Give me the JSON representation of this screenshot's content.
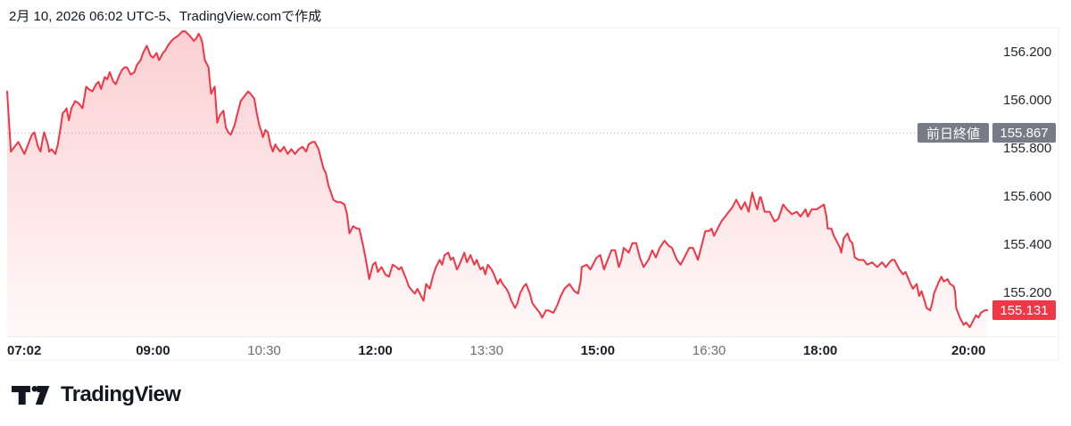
{
  "header": {
    "attribution": "2月 10, 2026 06:02 UTC-5、TradingView.comで作成"
  },
  "footer": {
    "logo_text": "TradingView"
  },
  "colors": {
    "accent_red": "#F23645",
    "prev_close_badge": "#787B86",
    "axis_text_major": "#1B1F29",
    "axis_text_minor": "#6A6D78",
    "price_text": "#23262F",
    "title_text": "#131722",
    "border": "#ECEEF1",
    "dotted_line": "#A7AAB3"
  },
  "chart_data": {
    "type": "area",
    "legend_position": "none",
    "grid": "off",
    "high": 156.29,
    "low": 155.06,
    "prev_close": {
      "label": "前日終値",
      "value": 155.867,
      "value_text": "155.867"
    },
    "last_price": {
      "value": 155.131,
      "value_text": "155.131"
    },
    "x_axis": {
      "start": "07:02",
      "end": "20:15",
      "ticks": [
        {
          "label": "07:02",
          "emphasis": true
        },
        {
          "label": "09:00",
          "emphasis": true
        },
        {
          "label": "10:30",
          "emphasis": false
        },
        {
          "label": "12:00",
          "emphasis": true
        },
        {
          "label": "13:30",
          "emphasis": false
        },
        {
          "label": "15:00",
          "emphasis": true
        },
        {
          "label": "16:30",
          "emphasis": false
        },
        {
          "label": "18:00",
          "emphasis": true
        },
        {
          "label": "20:00",
          "emphasis": true
        }
      ]
    },
    "y_axis": {
      "min": 155.02,
      "max": 156.305,
      "ticks": [
        {
          "value": 156.2,
          "label": "156.200"
        },
        {
          "value": 156.0,
          "label": "156.000"
        },
        {
          "value": 155.8,
          "label": "155.800"
        },
        {
          "value": 155.6,
          "label": "155.600"
        },
        {
          "value": 155.4,
          "label": "155.400"
        },
        {
          "value": 155.2,
          "label": "155.200"
        }
      ]
    },
    "points": [
      [
        "07:02",
        156.04
      ],
      [
        "07:05",
        155.79
      ],
      [
        "07:08",
        155.81
      ],
      [
        "07:11",
        155.83
      ],
      [
        "07:14",
        155.8
      ],
      [
        "07:16",
        155.78
      ],
      [
        "07:19",
        155.82
      ],
      [
        "07:22",
        155.86
      ],
      [
        "07:24",
        155.87
      ],
      [
        "07:27",
        155.81
      ],
      [
        "07:29",
        155.79
      ],
      [
        "07:31",
        155.85
      ],
      [
        "07:32",
        155.87
      ],
      [
        "07:35",
        155.82
      ],
      [
        "07:36",
        155.79
      ],
      [
        "07:38",
        155.8
      ],
      [
        "07:41",
        155.78
      ],
      [
        "07:43",
        155.82
      ],
      [
        "07:45",
        155.88
      ],
      [
        "07:47",
        155.95
      ],
      [
        "07:49",
        155.96
      ],
      [
        "07:50",
        155.97
      ],
      [
        "07:52",
        155.92
      ],
      [
        "07:54",
        155.97
      ],
      [
        "07:57",
        156.0
      ],
      [
        "08:00",
        155.99
      ],
      [
        "08:03",
        155.97
      ],
      [
        "08:06",
        156.06
      ],
      [
        "08:08",
        156.05
      ],
      [
        "08:11",
        156.04
      ],
      [
        "08:14",
        156.07
      ],
      [
        "08:16",
        156.08
      ],
      [
        "08:18",
        156.05
      ],
      [
        "08:21",
        156.1
      ],
      [
        "08:23",
        156.09
      ],
      [
        "08:25",
        156.12
      ],
      [
        "08:28",
        156.08
      ],
      [
        "08:30",
        156.07
      ],
      [
        "08:33",
        156.11
      ],
      [
        "08:35",
        156.13
      ],
      [
        "08:37",
        156.14
      ],
      [
        "08:39",
        156.14
      ],
      [
        "08:42",
        156.11
      ],
      [
        "08:45",
        156.12
      ],
      [
        "08:47",
        156.15
      ],
      [
        "08:50",
        156.17
      ],
      [
        "08:52",
        156.2
      ],
      [
        "08:54",
        156.22
      ],
      [
        "08:55",
        156.23
      ],
      [
        "08:58",
        156.19
      ],
      [
        "09:00",
        156.18
      ],
      [
        "09:03",
        156.2
      ],
      [
        "09:05",
        156.17
      ],
      [
        "09:08",
        156.2
      ],
      [
        "09:10",
        156.21
      ],
      [
        "09:12",
        156.23
      ],
      [
        "09:15",
        156.25
      ],
      [
        "09:17",
        156.26
      ],
      [
        "09:20",
        156.27
      ],
      [
        "09:22",
        156.28
      ],
      [
        "09:24",
        156.29
      ],
      [
        "09:26",
        156.29
      ],
      [
        "09:28",
        156.28
      ],
      [
        "09:30",
        156.27
      ],
      [
        "09:33",
        156.25
      ],
      [
        "09:35",
        156.26
      ],
      [
        "09:37",
        156.28
      ],
      [
        "09:39",
        156.26
      ],
      [
        "09:40",
        156.24
      ],
      [
        "09:42",
        156.17
      ],
      [
        "09:45",
        156.14
      ],
      [
        "09:46",
        156.08
      ],
      [
        "09:47",
        156.03
      ],
      [
        "09:50",
        156.06
      ],
      [
        "09:52",
        155.91
      ],
      [
        "09:54",
        155.94
      ],
      [
        "09:57",
        155.96
      ],
      [
        "09:59",
        155.89
      ],
      [
        "10:01",
        155.87
      ],
      [
        "10:03",
        155.86
      ],
      [
        "10:06",
        155.9
      ],
      [
        "10:08",
        155.94
      ],
      [
        "10:11",
        156.0
      ],
      [
        "10:14",
        156.02
      ],
      [
        "10:17",
        156.04
      ],
      [
        "10:19",
        156.03
      ],
      [
        "10:22",
        156.01
      ],
      [
        "10:24",
        155.95
      ],
      [
        "10:26",
        155.9
      ],
      [
        "10:28",
        155.87
      ],
      [
        "10:29",
        155.85
      ],
      [
        "10:31",
        155.88
      ],
      [
        "10:33",
        155.87
      ],
      [
        "10:35",
        155.82
      ],
      [
        "10:37",
        155.79
      ],
      [
        "10:39",
        155.82
      ],
      [
        "10:40",
        155.81
      ],
      [
        "10:43",
        155.79
      ],
      [
        "10:46",
        155.81
      ],
      [
        "10:49",
        155.78
      ],
      [
        "10:52",
        155.8
      ],
      [
        "10:55",
        155.78
      ],
      [
        "10:58",
        155.8
      ],
      [
        "11:01",
        155.81
      ],
      [
        "11:04",
        155.79
      ],
      [
        "11:06",
        155.82
      ],
      [
        "11:09",
        155.83
      ],
      [
        "11:11",
        155.83
      ],
      [
        "11:14",
        155.8
      ],
      [
        "11:16",
        155.76
      ],
      [
        "11:18",
        155.72
      ],
      [
        "11:20",
        155.7
      ],
      [
        "11:22",
        155.65
      ],
      [
        "11:24",
        155.62
      ],
      [
        "11:26",
        155.59
      ],
      [
        "11:29",
        155.58
      ],
      [
        "11:32",
        155.58
      ],
      [
        "11:35",
        155.57
      ],
      [
        "11:37",
        155.53
      ],
      [
        "11:39",
        155.45
      ],
      [
        "11:42",
        155.48
      ],
      [
        "11:45",
        155.47
      ],
      [
        "11:47",
        155.47
      ],
      [
        "11:50",
        155.4
      ],
      [
        "11:52",
        155.35
      ],
      [
        "11:55",
        155.26
      ],
      [
        "11:58",
        155.32
      ],
      [
        "12:00",
        155.33
      ],
      [
        "12:02",
        155.29
      ],
      [
        "12:05",
        155.31
      ],
      [
        "12:08",
        155.28
      ],
      [
        "12:11",
        155.27
      ],
      [
        "12:14",
        155.32
      ],
      [
        "12:17",
        155.31
      ],
      [
        "12:19",
        155.3
      ],
      [
        "12:21",
        155.31
      ],
      [
        "12:25",
        155.26
      ],
      [
        "12:27",
        155.23
      ],
      [
        "12:30",
        155.21
      ],
      [
        "12:32",
        155.2
      ],
      [
        "12:34",
        155.22
      ],
      [
        "12:37",
        155.19
      ],
      [
        "12:39",
        155.17
      ],
      [
        "12:41",
        155.24
      ],
      [
        "12:44",
        155.22
      ],
      [
        "12:47",
        155.28
      ],
      [
        "12:49",
        155.31
      ],
      [
        "12:52",
        155.34
      ],
      [
        "12:54",
        155.32
      ],
      [
        "12:56",
        155.36
      ],
      [
        "12:59",
        155.37
      ],
      [
        "13:01",
        155.34
      ],
      [
        "13:03",
        155.35
      ],
      [
        "13:06",
        155.3
      ],
      [
        "13:08",
        155.32
      ],
      [
        "13:12",
        155.37
      ],
      [
        "13:14",
        155.33
      ],
      [
        "13:17",
        155.36
      ],
      [
        "13:20",
        155.32
      ],
      [
        "13:22",
        155.34
      ],
      [
        "13:25",
        155.3
      ],
      [
        "13:27",
        155.31
      ],
      [
        "13:29",
        155.28
      ],
      [
        "13:31",
        155.32
      ],
      [
        "13:34",
        155.3
      ],
      [
        "13:36",
        155.28
      ],
      [
        "13:39",
        155.24
      ],
      [
        "13:41",
        155.26
      ],
      [
        "13:43",
        155.24
      ],
      [
        "13:46",
        155.22
      ],
      [
        "13:48",
        155.2
      ],
      [
        "13:50",
        155.17
      ],
      [
        "13:53",
        155.14
      ],
      [
        "13:55",
        155.16
      ],
      [
        "13:57",
        155.2
      ],
      [
        "14:00",
        155.23
      ],
      [
        "14:02",
        155.24
      ],
      [
        "14:05",
        155.2
      ],
      [
        "14:07",
        155.16
      ],
      [
        "14:10",
        155.14
      ],
      [
        "14:13",
        155.12
      ],
      [
        "14:15",
        155.1
      ],
      [
        "14:18",
        155.13
      ],
      [
        "14:20",
        155.13
      ],
      [
        "14:24",
        155.12
      ],
      [
        "14:27",
        155.15
      ],
      [
        "14:30",
        155.19
      ],
      [
        "14:33",
        155.22
      ],
      [
        "14:37",
        155.24
      ],
      [
        "14:41",
        155.21
      ],
      [
        "14:44",
        155.2
      ],
      [
        "14:46",
        155.25
      ],
      [
        "14:47",
        155.31
      ],
      [
        "14:51",
        155.32
      ],
      [
        "14:54",
        155.3
      ],
      [
        "14:59",
        155.35
      ],
      [
        "15:02",
        155.36
      ],
      [
        "15:05",
        155.3
      ],
      [
        "15:08",
        155.34
      ],
      [
        "15:11",
        155.38
      ],
      [
        "15:14",
        155.38
      ],
      [
        "15:17",
        155.31
      ],
      [
        "15:19",
        155.34
      ],
      [
        "15:21",
        155.39
      ],
      [
        "15:25",
        155.37
      ],
      [
        "15:28",
        155.41
      ],
      [
        "15:31",
        155.41
      ],
      [
        "15:34",
        155.35
      ],
      [
        "15:37",
        155.31
      ],
      [
        "15:41",
        155.34
      ],
      [
        "15:44",
        155.38
      ],
      [
        "15:47",
        155.35
      ],
      [
        "15:50",
        155.39
      ],
      [
        "15:54",
        155.42
      ],
      [
        "15:57",
        155.4
      ],
      [
        "16:00",
        155.39
      ],
      [
        "16:04",
        155.34
      ],
      [
        "16:07",
        155.32
      ],
      [
        "16:10",
        155.35
      ],
      [
        "16:14",
        155.39
      ],
      [
        "16:17",
        155.39
      ],
      [
        "16:21",
        155.34
      ],
      [
        "16:24",
        155.4
      ],
      [
        "16:27",
        155.46
      ],
      [
        "16:30",
        155.46
      ],
      [
        "16:32",
        155.47
      ],
      [
        "16:34",
        155.44
      ],
      [
        "16:38",
        155.48
      ],
      [
        "16:40",
        155.5
      ],
      [
        "16:43",
        155.52
      ],
      [
        "16:46",
        155.54
      ],
      [
        "16:49",
        155.56
      ],
      [
        "16:52",
        155.59
      ],
      [
        "16:56",
        155.55
      ],
      [
        "16:59",
        155.58
      ],
      [
        "17:02",
        155.54
      ],
      [
        "17:05",
        155.62
      ],
      [
        "17:07",
        155.58
      ],
      [
        "17:09",
        155.55
      ],
      [
        "17:11",
        155.6
      ],
      [
        "17:12",
        155.6
      ],
      [
        "17:15",
        155.54
      ],
      [
        "17:19",
        155.54
      ],
      [
        "17:23",
        155.5
      ],
      [
        "17:26",
        155.51
      ],
      [
        "17:30",
        155.57
      ],
      [
        "17:33",
        155.55
      ],
      [
        "17:37",
        155.53
      ],
      [
        "17:41",
        155.54
      ],
      [
        "17:44",
        155.52
      ],
      [
        "17:48",
        155.55
      ],
      [
        "17:50",
        155.52
      ],
      [
        "17:53",
        155.55
      ],
      [
        "17:57",
        155.55
      ],
      [
        "18:00",
        155.56
      ],
      [
        "18:03",
        155.57
      ],
      [
        "18:05",
        155.52
      ],
      [
        "18:06",
        155.47
      ],
      [
        "18:09",
        155.47
      ],
      [
        "18:11",
        155.44
      ],
      [
        "18:14",
        155.41
      ],
      [
        "18:16",
        155.39
      ],
      [
        "18:17",
        155.37
      ],
      [
        "18:19",
        155.43
      ],
      [
        "18:22",
        155.45
      ],
      [
        "18:24",
        155.42
      ],
      [
        "18:26",
        155.41
      ],
      [
        "18:28",
        155.35
      ],
      [
        "18:31",
        155.34
      ],
      [
        "18:35",
        155.34
      ],
      [
        "18:38",
        155.32
      ],
      [
        "18:42",
        155.33
      ],
      [
        "18:46",
        155.31
      ],
      [
        "18:50",
        155.33
      ],
      [
        "18:53",
        155.31
      ],
      [
        "18:56",
        155.33
      ],
      [
        "18:58",
        155.34
      ],
      [
        "19:00",
        155.34
      ],
      [
        "19:02",
        155.32
      ],
      [
        "19:04",
        155.3
      ],
      [
        "19:07",
        155.28
      ],
      [
        "19:09",
        155.29
      ],
      [
        "19:13",
        155.24
      ],
      [
        "19:15",
        155.22
      ],
      [
        "19:18",
        155.24
      ],
      [
        "19:20",
        155.19
      ],
      [
        "19:22",
        155.21
      ],
      [
        "19:25",
        155.16
      ],
      [
        "19:26",
        155.14
      ],
      [
        "19:29",
        155.13
      ],
      [
        "19:31",
        155.17
      ],
      [
        "19:32",
        155.2
      ],
      [
        "19:36",
        155.25
      ],
      [
        "19:38",
        155.27
      ],
      [
        "19:40",
        155.25
      ],
      [
        "19:43",
        155.26
      ],
      [
        "19:45",
        155.24
      ],
      [
        "19:48",
        155.23
      ],
      [
        "19:49",
        155.21
      ],
      [
        "19:50",
        155.14
      ],
      [
        "19:53",
        155.1
      ],
      [
        "19:55",
        155.08
      ],
      [
        "19:56",
        155.07
      ],
      [
        "19:58",
        155.08
      ],
      [
        "20:01",
        155.06
      ],
      [
        "20:03",
        155.08
      ],
      [
        "20:06",
        155.11
      ],
      [
        "20:08",
        155.1
      ],
      [
        "20:10",
        155.12
      ],
      [
        "20:13",
        155.13
      ],
      [
        "20:15",
        155.131
      ]
    ]
  }
}
